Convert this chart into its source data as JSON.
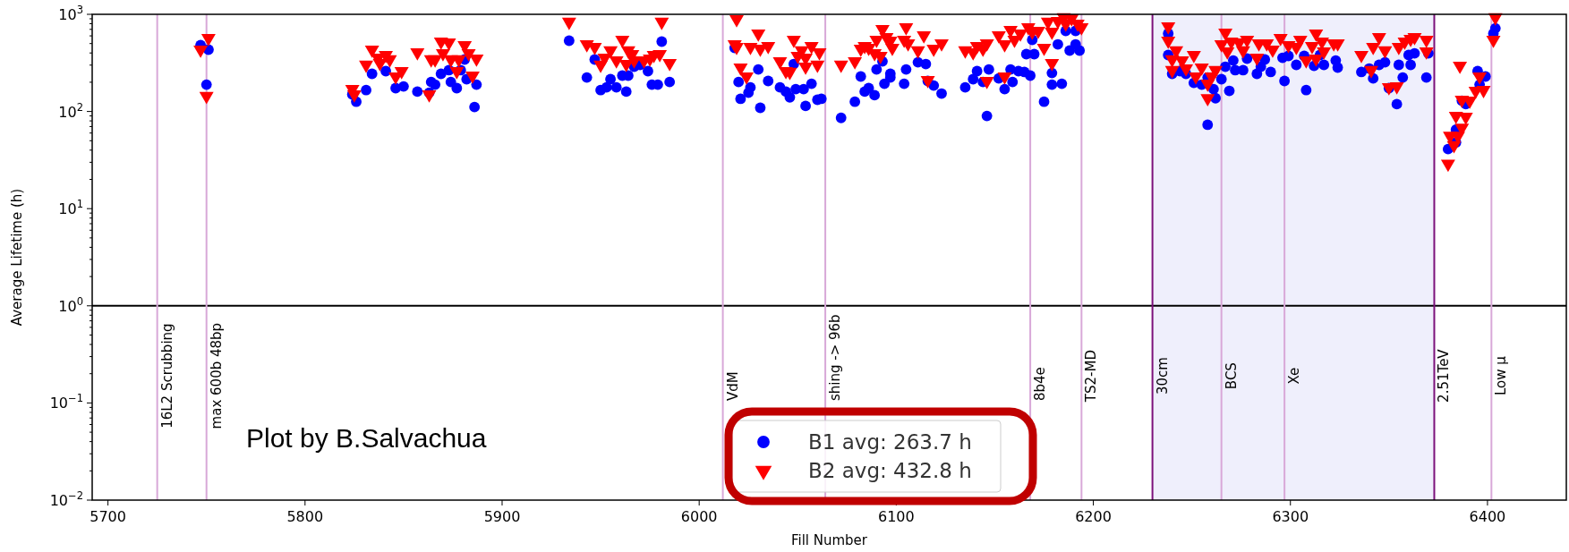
{
  "chart_data": {
    "type": "scatter",
    "xlabel": "Fill Number",
    "ylabel": "Average Lifetime (h)",
    "xlim": [
      5692,
      6440
    ],
    "xticks": [
      5700,
      5800,
      5900,
      6000,
      6100,
      6200,
      6300,
      6400
    ],
    "ylim": [
      0.01,
      1000
    ],
    "log": "y",
    "yticks": [
      {
        "value": 0.01,
        "label": "10$^{−2}$"
      },
      {
        "value": 0.1,
        "label": "10$^{−1}$"
      },
      {
        "value": 1,
        "label": "10$^{0}$"
      },
      {
        "value": 10,
        "label": "10$^{1}$"
      },
      {
        "value": 100,
        "label": "10$^{2}$"
      },
      {
        "value": 1000,
        "label": "10$^{3}$"
      },
      {
        "value": 0.02,
        "label": null
      },
      {
        "value": 0.03,
        "label": null
      },
      {
        "value": 0.04,
        "label": null
      },
      {
        "value": 0.05,
        "label": null
      },
      {
        "value": 0.06,
        "label": null
      },
      {
        "value": 0.07,
        "label": null
      },
      {
        "value": 0.08,
        "label": null
      },
      {
        "value": 0.09,
        "label": null
      },
      {
        "value": 0.2,
        "label": null
      },
      {
        "value": 0.3,
        "label": null
      },
      {
        "value": 0.4,
        "label": null
      },
      {
        "value": 0.5,
        "label": null
      },
      {
        "value": 0.6,
        "label": null
      },
      {
        "value": 0.7,
        "label": null
      },
      {
        "value": 0.8,
        "label": null
      },
      {
        "value": 0.9,
        "label": null
      },
      {
        "value": 2,
        "label": null
      },
      {
        "value": 3,
        "label": null
      },
      {
        "value": 4,
        "label": null
      },
      {
        "value": 5,
        "label": null
      },
      {
        "value": 6,
        "label": null
      },
      {
        "value": 7,
        "label": null
      },
      {
        "value": 8,
        "label": null
      },
      {
        "value": 9,
        "label": null
      },
      {
        "value": 20,
        "label": null
      },
      {
        "value": 30,
        "label": null
      },
      {
        "value": 40,
        "label": null
      },
      {
        "value": 50,
        "label": null
      },
      {
        "value": 60,
        "label": null
      },
      {
        "value": 70,
        "label": null
      },
      {
        "value": 80,
        "label": null
      },
      {
        "value": 90,
        "label": null
      },
      {
        "value": 200,
        "label": null
      },
      {
        "value": 300,
        "label": null
      },
      {
        "value": 400,
        "label": null
      },
      {
        "value": 500,
        "label": null
      },
      {
        "value": 600,
        "label": null
      },
      {
        "value": 700,
        "label": null
      },
      {
        "value": 800,
        "label": null
      },
      {
        "value": 900,
        "label": null
      }
    ],
    "grid": false,
    "legend": "bottom",
    "series": [
      {
        "name": "B1 avg: 263.7 h",
        "color": "#0000ff",
        "marker": "circle",
        "x": [
          5747,
          5751,
          5750,
          5824,
          5826,
          5831,
          5834,
          5841,
          5846,
          5850,
          5857,
          5863,
          5864,
          5866,
          5869,
          5873,
          5874,
          5877,
          5879,
          5881,
          5882,
          5886,
          5887,
          5934,
          5943,
          5947,
          5950,
          5953,
          5955,
          5958,
          5961,
          5963,
          5964,
          5967,
          5970,
          5974,
          5976,
          5979,
          5981,
          5985,
          6018,
          6020,
          6021,
          6025,
          6026,
          6030,
          6031,
          6035,
          6041,
          6044,
          6046,
          6048,
          6049,
          6053,
          6054,
          6057,
          6060,
          6062,
          6072,
          6079,
          6082,
          6084,
          6086,
          6089,
          6090,
          6093,
          6094,
          6097,
          6097,
          6104,
          6105,
          6111,
          6115,
          6116,
          6119,
          6123,
          6135,
          6139,
          6141,
          6144,
          6146,
          6147,
          6152,
          6155,
          6158,
          6159,
          6162,
          6165,
          6168,
          6166,
          6170,
          6169,
          6175,
          6179,
          6179,
          6182,
          6184,
          6186,
          6188,
          6191,
          6193,
          6191,
          6238,
          6238,
          6240,
          6244,
          6247,
          6251,
          6255,
          6258,
          6261,
          6262,
          6258,
          6265,
          6269,
          6267,
          6271,
          6272,
          6276,
          6278,
          6283,
          6285,
          6287,
          6290,
          6296,
          6297,
          6299,
          6303,
          6307,
          6308,
          6312,
          6315,
          6317,
          6323,
          6324,
          6336,
          6340,
          6342,
          6345,
          6348,
          6350,
          6354,
          6355,
          6357,
          6360,
          6361,
          6363,
          6369,
          6370,
          6380,
          6384,
          6384,
          6387,
          6389,
          6395,
          6396,
          6399,
          6404,
          6403
        ],
        "values": [
          481,
          433,
          189,
          150,
          126,
          166,
          244,
          260,
          174,
          181,
          160,
          156,
          201,
          189,
          244,
          266,
          201,
          174,
          266,
          343,
          215,
          111,
          189,
          535,
          224,
          343,
          166,
          177,
          215,
          177,
          234,
          160,
          234,
          289,
          302,
          260,
          189,
          189,
          524,
          201,
          451,
          201,
          135,
          156,
          177,
          271,
          109,
          206,
          177,
          160,
          140,
          308,
          170,
          170,
          114,
          193,
          132,
          135,
          86,
          126,
          229,
          160,
          174,
          147,
          271,
          328,
          193,
          244,
          224,
          193,
          271,
          321,
          308,
          206,
          185,
          153,
          177,
          215,
          260,
          201,
          90,
          271,
          219,
          170,
          271,
          201,
          260,
          255,
          234,
          389,
          389,
          546,
          126,
          249,
          189,
          491,
          193,
          675,
          424,
          675,
          424,
          491,
          634,
          381,
          244,
          260,
          244,
          197,
          189,
          224,
          170,
          137,
          73,
          215,
          163,
          289,
          335,
          266,
          266,
          350,
          244,
          289,
          343,
          255,
          357,
          206,
          373,
          302,
          373,
          166,
          295,
          381,
          302,
          335,
          283,
          255,
          277,
          219,
          302,
          321,
          174,
          119,
          302,
          224,
          381,
          302,
          397,
          224,
          397,
          41,
          48,
          65,
          129,
          119,
          260,
          189,
          229,
          719,
          634
        ]
      },
      {
        "name": "B2 avg: 432.8 h",
        "color": "#ff0000",
        "marker": "triangle",
        "x": [
          5747,
          5751,
          5750,
          5824,
          5825,
          5831,
          5834,
          5837,
          5838,
          5841,
          5843,
          5846,
          5849,
          5857,
          5863,
          5864,
          5866,
          5869,
          5873,
          5870,
          5874,
          5877,
          5878,
          5881,
          5883,
          5885,
          5887,
          5934,
          5943,
          5947,
          5950,
          5952,
          5955,
          5958,
          5961,
          5963,
          5964,
          5966,
          5967,
          5972,
          5975,
          5977,
          5980,
          5981,
          5985,
          6019,
          6018,
          6019,
          6021,
          6024,
          6026,
          6030,
          6031,
          6035,
          6041,
          6044,
          6046,
          6048,
          6050,
          6052,
          6054,
          6054,
          6057,
          6060,
          6061,
          6072,
          6079,
          6082,
          6084,
          6086,
          6089,
          6090,
          6093,
          6095,
          6097,
          6098,
          6092,
          6104,
          6105,
          6106,
          6111,
          6114,
          6116,
          6119,
          6123,
          6135,
          6139,
          6141,
          6144,
          6146,
          6146,
          6152,
          6155,
          6155,
          6158,
          6160,
          6163,
          6167,
          6169,
          6172,
          6175,
          6177,
          6179,
          6179,
          6182,
          6185,
          6186,
          6189,
          6192,
          6194,
          6238,
          6238,
          6242,
          6240,
          6245,
          6240,
          6247,
          6251,
          6252,
          6255,
          6258,
          6258,
          6260,
          6262,
          6267,
          6265,
          6268,
          6270,
          6274,
          6276,
          6278,
          6283,
          6284,
          6288,
          6291,
          6295,
          6299,
          6303,
          6305,
          6308,
          6311,
          6313,
          6313,
          6316,
          6317,
          6322,
          6324,
          6336,
          6341,
          6342,
          6345,
          6348,
          6350,
          6354,
          6355,
          6358,
          6361,
          6363,
          6369,
          6369,
          6380,
          6383,
          6381,
          6385,
          6387,
          6384,
          6389,
          6387,
          6391,
          6386,
          6396,
          6394,
          6398,
          6404,
          6403
        ],
        "values": [
          433,
          570,
          144,
          170,
          150,
          302,
          433,
          357,
          315,
          381,
          343,
          229,
          260,
          406,
          150,
          343,
          343,
          524,
          513,
          397,
          343,
          260,
          343,
          481,
          397,
          234,
          350,
          836,
          491,
          461,
          302,
          357,
          424,
          335,
          546,
          308,
          424,
          389,
          335,
          335,
          350,
          381,
          389,
          836,
          315,
          890,
          491,
          461,
          283,
          229,
          461,
          634,
          442,
          471,
          328,
          260,
          255,
          546,
          373,
          424,
          289,
          357,
          471,
          302,
          406,
          302,
          328,
          442,
          471,
          451,
          397,
          546,
          704,
          582,
          535,
          451,
          373,
          546,
          735,
          501,
          424,
          607,
          210,
          442,
          501,
          424,
          406,
          471,
          442,
          501,
          206,
          607,
          491,
          229,
          690,
          546,
          634,
          735,
          661,
          675,
          451,
          836,
          661,
          315,
          853,
          929,
          800,
          909,
          800,
          735,
          751,
          535,
          424,
          343,
          335,
          266,
          277,
          381,
          229,
          283,
          193,
          137,
          229,
          266,
          647,
          491,
          415,
          524,
          513,
          424,
          546,
          357,
          501,
          501,
          433,
          570,
          481,
          461,
          546,
          335,
          471,
          350,
          634,
          524,
          415,
          501,
          501,
          381,
          266,
          461,
          582,
          424,
          177,
          181,
          461,
          524,
          558,
          582,
          546,
          415,
          29,
          45,
          56,
          56,
          68,
          90,
          88,
          132,
          129,
          295,
          229,
          163,
          166,
          929,
          546
        ]
      }
    ],
    "ref_lines": [
      {
        "axis": "y",
        "value": 1,
        "color": "#000000"
      },
      {
        "axis": "x",
        "value": 5725,
        "label": "16L2 Scrubbing",
        "color": "#d8a8d8"
      },
      {
        "axis": "x",
        "value": 5750,
        "label": "max 600b 48bp",
        "color": "#d8a8d8"
      },
      {
        "axis": "x",
        "value": 6012,
        "label": "VdM",
        "color": "#d8a8d8"
      },
      {
        "axis": "x",
        "value": 6064,
        "label": "shing -> 96b",
        "color": "#d8a8d8"
      },
      {
        "axis": "x",
        "value": 6168,
        "label": "8b4e",
        "color": "#d8a8d8"
      },
      {
        "axis": "x",
        "value": 6194,
        "label": "TS2-MD",
        "color": "#d8a8d8"
      },
      {
        "axis": "x",
        "value": 6230,
        "label": "30cm",
        "color": "#7b117b"
      },
      {
        "axis": "x",
        "value": 6265,
        "label": "BCS",
        "color": "#d8a8d8"
      },
      {
        "axis": "x",
        "value": 6297,
        "label": "Xe",
        "color": "#d8a8d8"
      },
      {
        "axis": "x",
        "value": 6373,
        "label": "2.51TeV",
        "color": "#7b117b"
      },
      {
        "axis": "x",
        "value": 6402,
        "label": "Low μ",
        "color": "#d8a8d8"
      }
    ],
    "bands": [
      {
        "axis": "x",
        "from": 6230,
        "to": 6373,
        "color": "#efeffc"
      }
    ],
    "annotations": [
      "Plot by B.Salvachua"
    ]
  }
}
